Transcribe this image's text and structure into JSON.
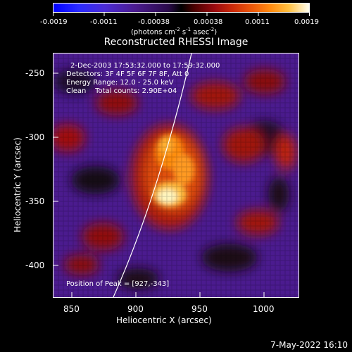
{
  "colorbar": {
    "ticks": [
      "-0.0019",
      "-0.0011",
      "-0.00038",
      "0.00038",
      "0.0011",
      "0.0019"
    ],
    "units_prefix": "(photons cm",
    "units_exp1": "-2",
    "units_mid": " s",
    "units_exp2": "-1",
    "units_mid2": " asec",
    "units_exp3": "-2",
    "units_suffix": ")"
  },
  "title": "Reconstructed RHESSI Image",
  "info": {
    "line1": "2-Dec-2003 17:53:32.000 to 17:59:32.000",
    "line2": "Detectors: 3F 4F 5F 6F 7F 8F, Att 0",
    "line3": "Energy Range: 12.0 - 25.0 keV",
    "line4": "Clean    Total counts: 2.90E+04",
    "peak": "Position of Peak = [927,-343]"
  },
  "axes": {
    "xlabel": "Heliocentric X (arcsec)",
    "ylabel": "Heliocentric Y (arcsec)",
    "xticks": [
      "850",
      "900",
      "950",
      "1000"
    ],
    "yticks": [
      "-250",
      "-300",
      "-350",
      "-400"
    ],
    "xlim": [
      835,
      1025
    ],
    "ylim": [
      -425,
      -235
    ]
  },
  "datestamp": "7-May-2022 16:10",
  "colors": {
    "background": "#000000",
    "foreground": "#ffffff",
    "low": "#4b1b8f",
    "high": "#fffff0"
  }
}
